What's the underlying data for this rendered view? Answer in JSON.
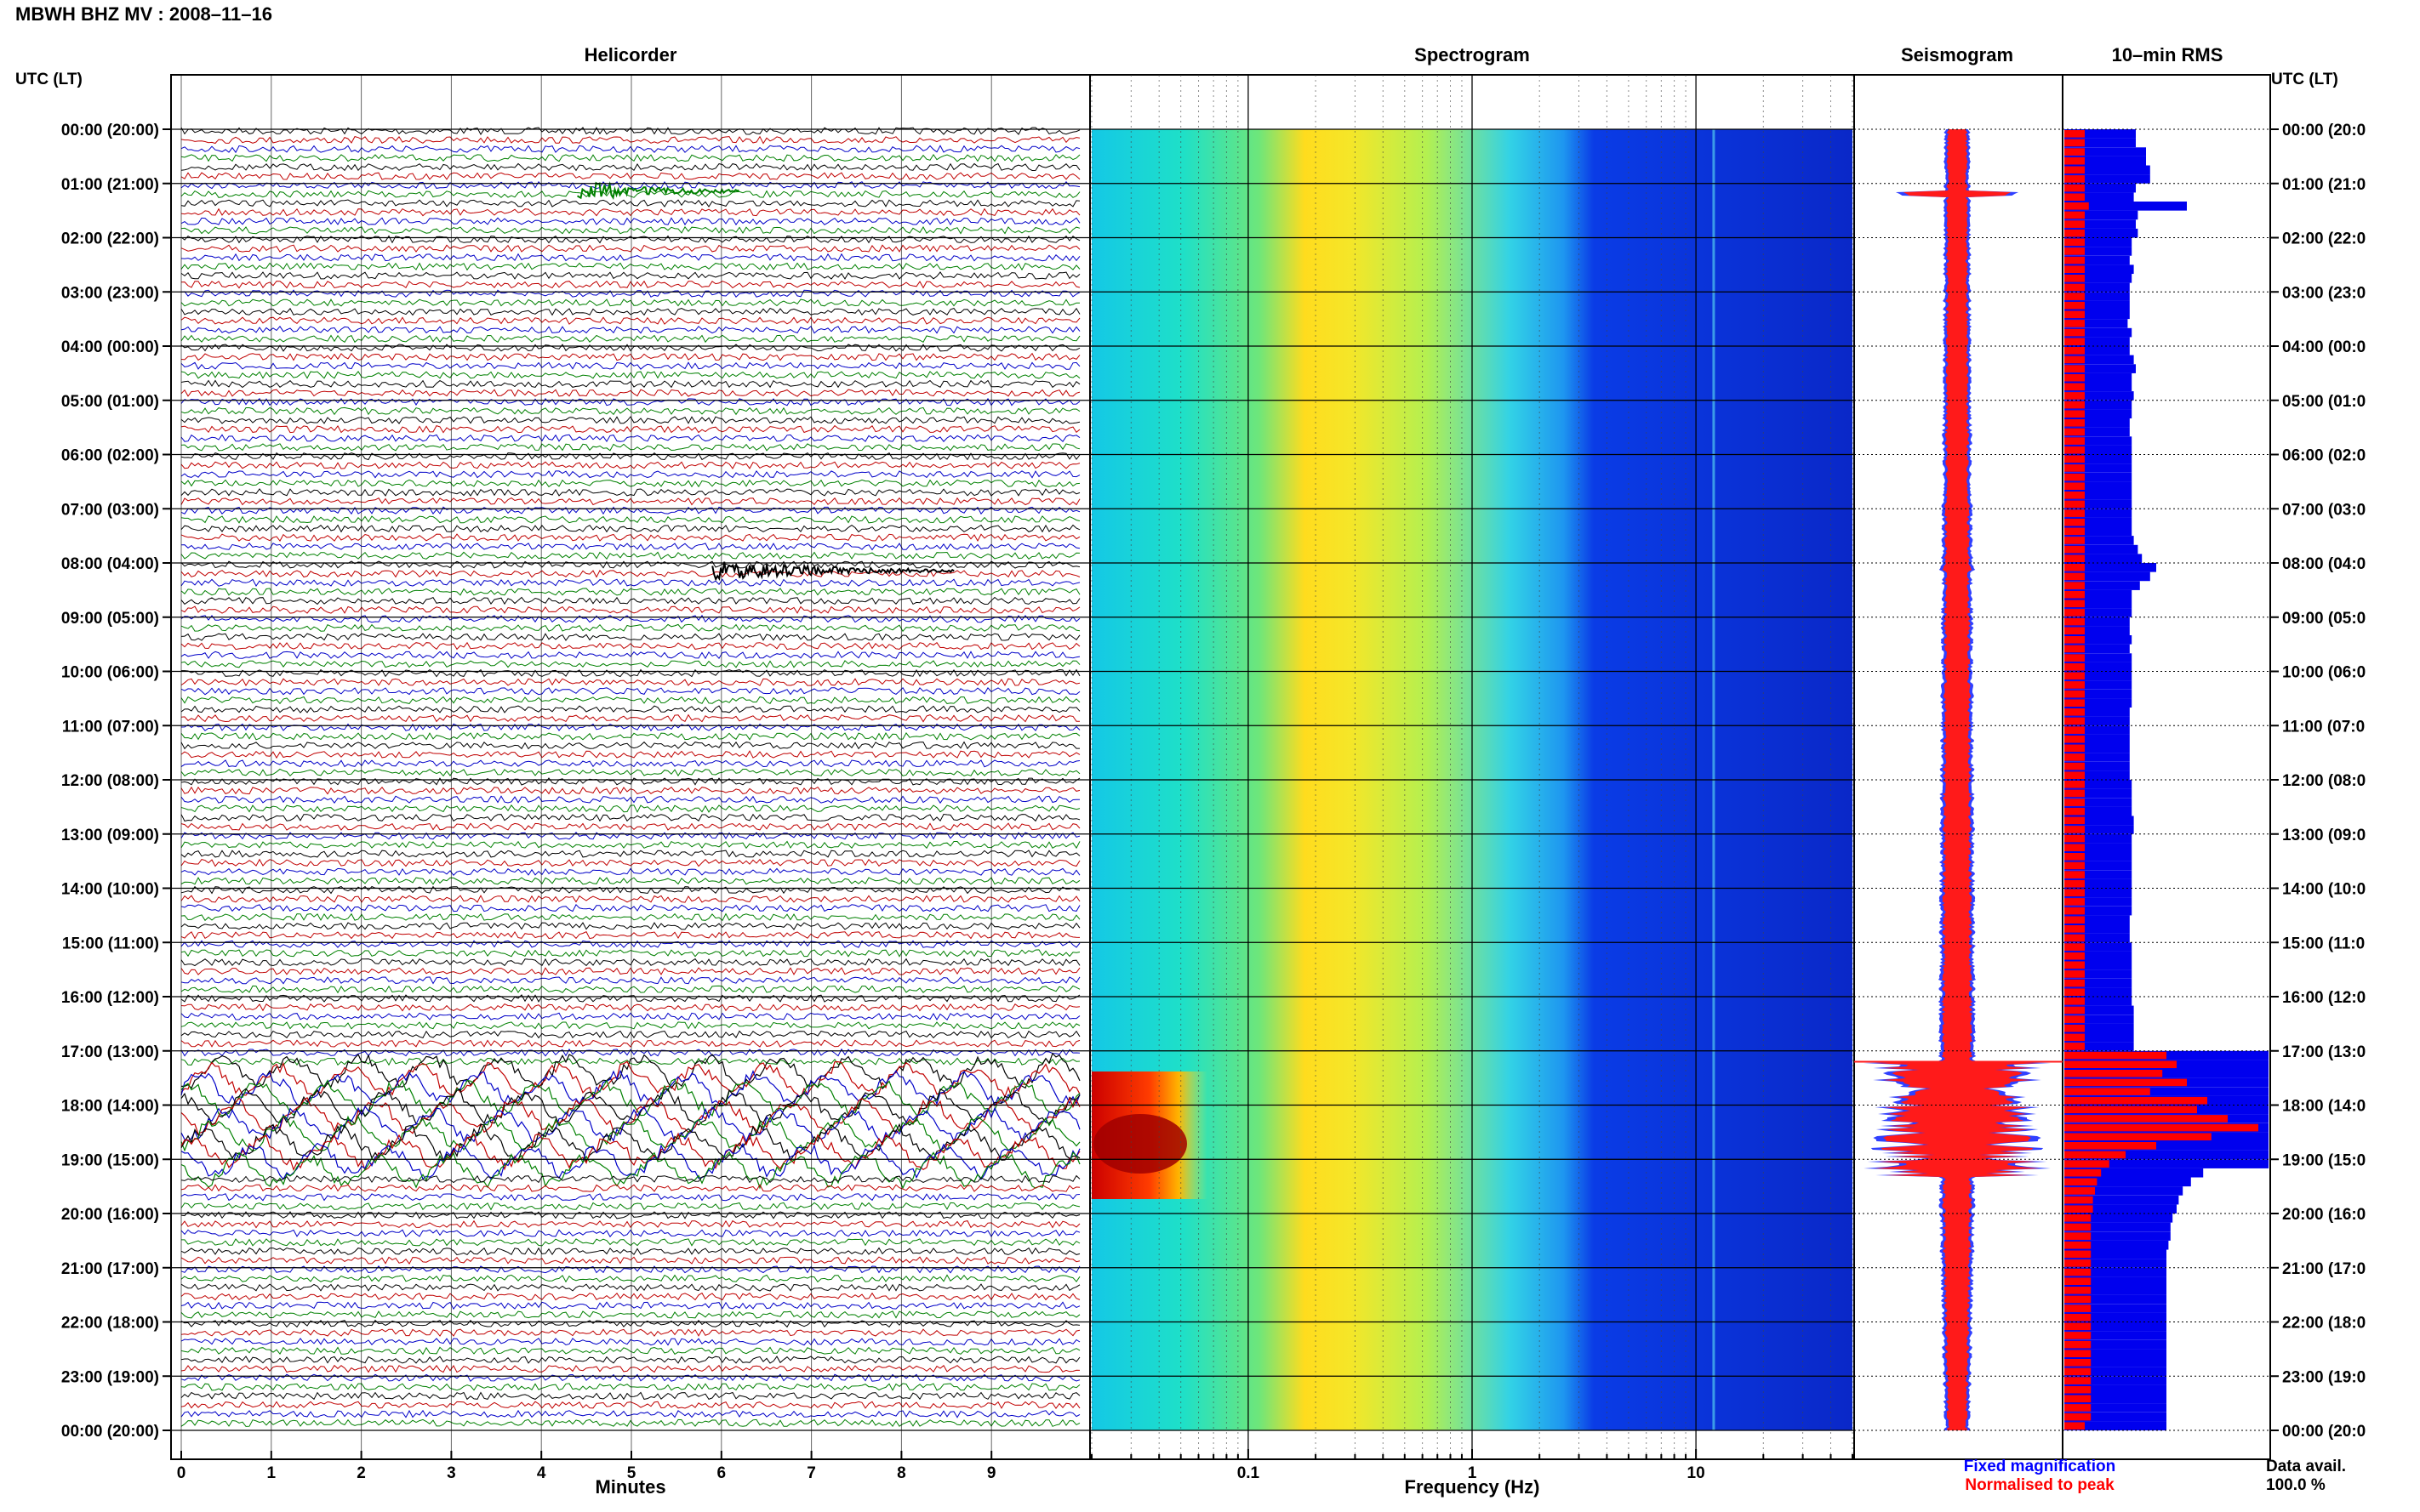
{
  "header": {
    "station_title": "MBWH BHZ MV : 2008–11–16"
  },
  "panels": {
    "helicorder": "Helicorder",
    "spectrogram": "Spectrogram",
    "seismogram": "Seismogram",
    "rms": "10–min RMS"
  },
  "time_axis": {
    "left_header": "UTC (LT)",
    "right_header": "UTC (LT)",
    "labels": [
      "00:00 (20:00)",
      "01:00 (21:00)",
      "02:00 (22:00)",
      "03:00 (23:00)",
      "04:00 (00:00)",
      "05:00 (01:00)",
      "06:00 (02:00)",
      "07:00 (03:00)",
      "08:00 (04:00)",
      "09:00 (05:00)",
      "10:00 (06:00)",
      "11:00 (07:00)",
      "12:00 (08:00)",
      "13:00 (09:00)",
      "14:00 (10:00)",
      "15:00 (11:00)",
      "16:00 (12:00)",
      "17:00 (13:00)",
      "18:00 (14:00)",
      "19:00 (15:00)",
      "20:00 (16:00)",
      "21:00 (17:00)",
      "22:00 (18:00)",
      "23:00 (19:00)",
      "00:00 (20:00)"
    ],
    "labels_right": [
      "00:00 (20:0",
      "01:00 (21:0",
      "02:00 (22:0",
      "03:00 (23:0",
      "04:00 (00:0",
      "05:00 (01:0",
      "06:00 (02:0",
      "07:00 (03:0",
      "08:00 (04:0",
      "09:00 (05:0",
      "10:00 (06:0",
      "11:00 (07:0",
      "12:00 (08:0",
      "13:00 (09:0",
      "14:00 (10:0",
      "15:00 (11:0",
      "16:00 (12:0",
      "17:00 (13:0",
      "18:00 (14:0",
      "19:00 (15:0",
      "20:00 (16:0",
      "21:00 (17:0",
      "22:00 (18:0",
      "23:00 (19:0",
      "00:00 (20:0"
    ]
  },
  "helicorder_axis": {
    "xlabel": "Minutes",
    "ticks": [
      "0",
      "1",
      "2",
      "3",
      "4",
      "5",
      "6",
      "7",
      "8",
      "9"
    ],
    "xlim": [
      0,
      10
    ],
    "trace_colors": [
      "#000000",
      "#c00000",
      "#0000c8",
      "#008000"
    ]
  },
  "spectrogram_axis": {
    "xlabel": "Frequency (Hz)",
    "ticks": [
      "0.1",
      "1",
      "10"
    ],
    "xlim": [
      0.02,
      50
    ],
    "scale": "log"
  },
  "legend": {
    "fixed": "Fixed magnification",
    "fixed_color": "#0000ff",
    "normalised": "Normalised to peak",
    "normalised_color": "#ff0000"
  },
  "data_avail": {
    "label": "Data avail.",
    "value": "100.0 %"
  },
  "chart_data": {
    "type": "heatmap",
    "title": "MBWH BHZ MV : 2008–11–16",
    "events": [
      {
        "panel": "helicorder",
        "start_hour": 1.0,
        "start_minute": 4.4,
        "end_minute": 6.2,
        "color": "#008000"
      },
      {
        "panel": "helicorder",
        "start_hour": 8.0,
        "start_minute": 5.9,
        "end_minute": 8.6,
        "color": "#000000"
      }
    ],
    "high_amplitude_period_hours": [
      17.2,
      19.3
    ],
    "rms_fixed": [
      0.35,
      0.35,
      0.4,
      0.4,
      0.42,
      0.42,
      0.35,
      0.34,
      0.6,
      0.36,
      0.35,
      0.36,
      0.33,
      0.33,
      0.32,
      0.34,
      0.33,
      0.32,
      0.32,
      0.32,
      0.32,
      0.31,
      0.33,
      0.32,
      0.32,
      0.34,
      0.35,
      0.33,
      0.33,
      0.34,
      0.33,
      0.33,
      0.32,
      0.32,
      0.33,
      0.33,
      0.33,
      0.33,
      0.33,
      0.33,
      0.33,
      0.33,
      0.33,
      0.33,
      0.33,
      0.34,
      0.36,
      0.38,
      0.45,
      0.42,
      0.37,
      0.33,
      0.33,
      0.33,
      0.32,
      0.32,
      0.33,
      0.32,
      0.33,
      0.33,
      0.33,
      0.33,
      0.33,
      0.33,
      0.32,
      0.32,
      0.32,
      0.32,
      0.32,
      0.32,
      0.32,
      0.32,
      0.33,
      0.33,
      0.33,
      0.33,
      0.34,
      0.34,
      0.33,
      0.33,
      0.33,
      0.33,
      0.33,
      0.33,
      0.33,
      0.33,
      0.33,
      0.32,
      0.32,
      0.32,
      0.33,
      0.33,
      0.33,
      0.33,
      0.33,
      0.33,
      0.33,
      0.34,
      0.34,
      0.34,
      0.34,
      0.34,
      1.0,
      1.0,
      1.0,
      1.0,
      1.0,
      1.0,
      1.0,
      1.0,
      1.0,
      1.0,
      1.0,
      1.0,
      1.0,
      0.68,
      0.62,
      0.58,
      0.56,
      0.55,
      0.53,
      0.52,
      0.52,
      0.51,
      0.5,
      0.5,
      0.5,
      0.5,
      0.5,
      0.5,
      0.5,
      0.5,
      0.5,
      0.5,
      0.5,
      0.5,
      0.5,
      0.5,
      0.5,
      0.5,
      0.5,
      0.5,
      0.5,
      0.5,
      0.5,
      0.5
    ],
    "rms_normalised": [
      0.1,
      0.1,
      0.1,
      0.1,
      0.1,
      0.1,
      0.1,
      0.1,
      0.12,
      0.1,
      0.1,
      0.1,
      0.1,
      0.1,
      0.1,
      0.1,
      0.1,
      0.1,
      0.1,
      0.1,
      0.1,
      0.1,
      0.1,
      0.1,
      0.1,
      0.1,
      0.1,
      0.1,
      0.1,
      0.1,
      0.1,
      0.1,
      0.1,
      0.1,
      0.1,
      0.1,
      0.1,
      0.1,
      0.1,
      0.1,
      0.1,
      0.1,
      0.1,
      0.1,
      0.1,
      0.1,
      0.1,
      0.1,
      0.1,
      0.1,
      0.1,
      0.1,
      0.1,
      0.1,
      0.1,
      0.1,
      0.1,
      0.1,
      0.1,
      0.1,
      0.1,
      0.1,
      0.1,
      0.1,
      0.1,
      0.1,
      0.1,
      0.1,
      0.1,
      0.1,
      0.1,
      0.1,
      0.1,
      0.1,
      0.1,
      0.1,
      0.1,
      0.1,
      0.1,
      0.1,
      0.1,
      0.1,
      0.1,
      0.1,
      0.1,
      0.1,
      0.1,
      0.1,
      0.1,
      0.1,
      0.1,
      0.1,
      0.1,
      0.1,
      0.1,
      0.1,
      0.1,
      0.1,
      0.1,
      0.1,
      0.1,
      0.1,
      0.5,
      0.55,
      0.48,
      0.6,
      0.42,
      0.7,
      0.65,
      0.8,
      0.95,
      0.72,
      0.45,
      0.3,
      0.22,
      0.18,
      0.16,
      0.15,
      0.14,
      0.14,
      0.13,
      0.13,
      0.13,
      0.13,
      0.13,
      0.13,
      0.13,
      0.13,
      0.13,
      0.13,
      0.13,
      0.13,
      0.13,
      0.13,
      0.13,
      0.13,
      0.13,
      0.13,
      0.13,
      0.13,
      0.13,
      0.13,
      0.13
    ]
  }
}
